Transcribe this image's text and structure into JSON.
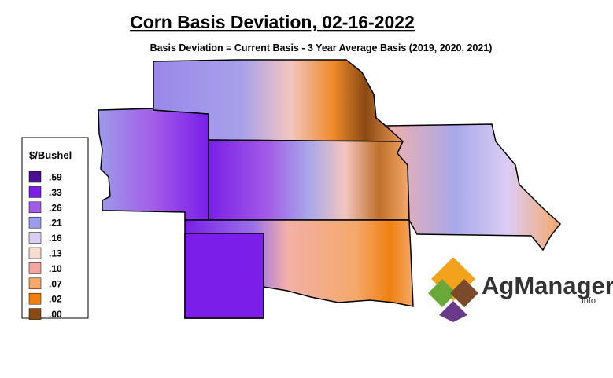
{
  "header": {
    "title": "Corn Basis Deviation, 02-16-2022",
    "subtitle": "Basis Deviation = Current Basis - 3 Year Average Basis (2019, 2020, 2021)"
  },
  "legend": {
    "title": "$/Bushel",
    "items": [
      {
        "label": ".59",
        "color": "#4a1090"
      },
      {
        "label": ".33",
        "color": "#7a1ee8"
      },
      {
        "label": ".26",
        "color": "#a35ce8"
      },
      {
        "label": ".21",
        "color": "#9c9ce8"
      },
      {
        "label": ".16",
        "color": "#dccdf4"
      },
      {
        "label": ".13",
        "color": "#f7dccf"
      },
      {
        "label": ".10",
        "color": "#f3a7a0"
      },
      {
        "label": ".07",
        "color": "#f4a86a"
      },
      {
        "label": ".02",
        "color": "#ef8010"
      },
      {
        "label": ".00",
        "color": "#8a4a12"
      }
    ]
  },
  "logo": {
    "name": "AgManager",
    "suffix": ".info"
  }
}
